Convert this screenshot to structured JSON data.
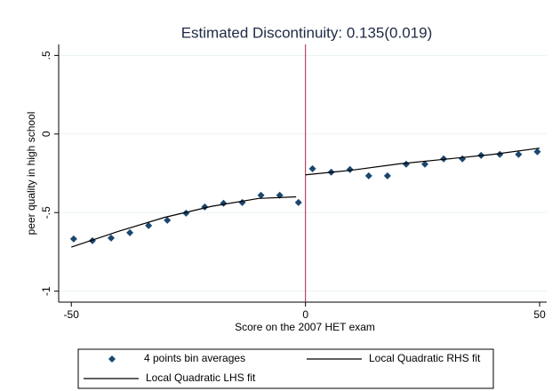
{
  "chart_data": {
    "type": "scatter",
    "title": "Estimated Discontinuity: 0.135(0.019)",
    "x_label": "Score on the 2007 HET exam",
    "y_label": "peer quality in high school",
    "xlim": [
      -52.7,
      51.5
    ],
    "ylim": [
      -1.07,
      0.57
    ],
    "xticks": [
      -50,
      0,
      50
    ],
    "yticks": [
      {
        "value": 0.5,
        "label": ".5"
      },
      0,
      {
        "value": -0.5,
        "label": "-.5"
      },
      -1
    ],
    "grid": true,
    "cutoff": 0,
    "cutoff_color": "#a0224a",
    "legend": "bottom",
    "series": [
      {
        "name": "4 points bin averages",
        "type": "scatter",
        "color": "#1a476f",
        "x": [
          -49.5,
          -45.5,
          -41.5,
          -37.5,
          -33.5,
          -29.5,
          -25.5,
          -21.5,
          -17.5,
          -13.5,
          -9.5,
          -5.5,
          -1.5,
          1.5,
          5.5,
          9.5,
          13.5,
          17.5,
          21.5,
          25.5,
          29.5,
          33.5,
          37.5,
          41.5,
          45.5,
          49.5
        ],
        "values": [
          -0.668,
          -0.679,
          -0.662,
          -0.628,
          -0.583,
          -0.549,
          -0.504,
          -0.464,
          -0.441,
          -0.436,
          -0.39,
          -0.39,
          -0.436,
          -0.221,
          -0.243,
          -0.226,
          -0.266,
          -0.266,
          -0.192,
          -0.192,
          -0.158,
          -0.158,
          -0.136,
          -0.13,
          -0.13,
          -0.113
        ]
      },
      {
        "name": "Local Quadratic RHS fit",
        "type": "line",
        "color": "#000000",
        "x": [
          0,
          10,
          20,
          30,
          40,
          50
        ],
        "values": [
          -0.26,
          -0.23,
          -0.19,
          -0.16,
          -0.13,
          -0.09
        ]
      },
      {
        "name": "Local Quadratic LHS fit",
        "type": "line",
        "color": "#000000",
        "x": [
          -50,
          -40,
          -30,
          -20,
          -10,
          -2
        ],
        "values": [
          -0.72,
          -0.62,
          -0.53,
          -0.46,
          -0.41,
          -0.4
        ]
      }
    ]
  }
}
